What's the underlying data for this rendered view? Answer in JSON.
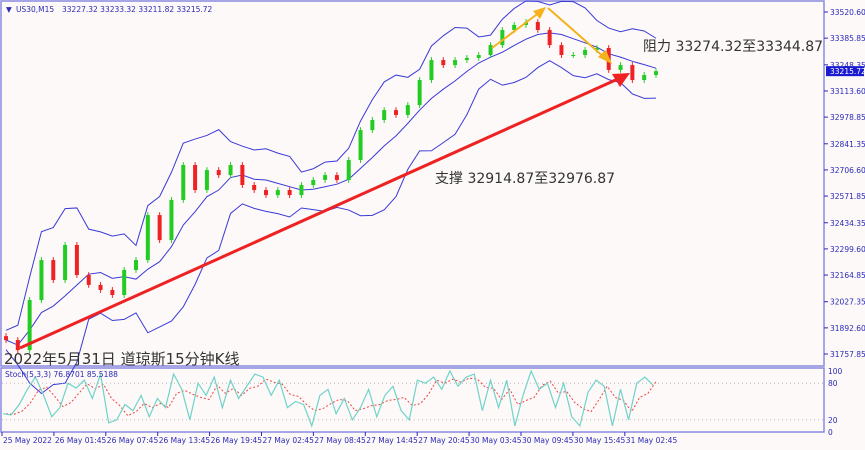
{
  "header": {
    "symbol": "US30,M15",
    "ohlc": "33227.32 33233.32 33211.82 33215.72",
    "menu_icon": "triangle-down-icon"
  },
  "annotations": {
    "resistance": "阻力 33274.32至33344.87",
    "support": "支撑 32914.87至32976.87",
    "caption": "2022年5月31日 道琼斯15分钟K线"
  },
  "colors": {
    "up_candle": "#22cc22",
    "down_candle": "#ee2222",
    "bands": "#3a3ad8",
    "trend_arrow": "#ee2222",
    "wave_lines": "#f5b21c",
    "stoch_main": "#6fd3c9",
    "stoch_signal": "#ee4444",
    "axis": "#2a2ab8",
    "current_price_bg": "#1a1ad0"
  },
  "chart_data": [
    {
      "type": "candlestick",
      "title": "",
      "ylim": [
        31700,
        33580
      ],
      "y_ticks": [
        "33520.60",
        "33385.85",
        "33248.35",
        "33113.60",
        "32978.85",
        "32841.35",
        "32706.60",
        "32571.85",
        "32434.35",
        "32299.60",
        "32164.85",
        "32027.35",
        "31892.60",
        "31757.85"
      ],
      "current_price": "33215.72",
      "x_ticks": [
        "25 May 2022",
        "26 May 01:45",
        "26 May 07:45",
        "26 May 13:45",
        "26 May 19:45",
        "27 May 02:45",
        "27 May 08:45",
        "27 May 14:45",
        "27 May 20:45",
        "30 May 03:45",
        "30 May 09:45",
        "30 May 15:45",
        "31 May 02:45"
      ],
      "closes": [
        31830,
        31778,
        32036,
        32242,
        32139,
        32320,
        32165,
        32114,
        32088,
        32062,
        32191,
        32242,
        32474,
        32345,
        32552,
        32732,
        32603,
        32706,
        32680,
        32732,
        32629,
        32603,
        32577,
        32603,
        32577,
        32629,
        32655,
        32680,
        32655,
        32758,
        32912,
        32964,
        33015,
        32990,
        33041,
        33170,
        33273,
        33247,
        33273,
        33284,
        33299,
        33350,
        33428,
        33454,
        33469,
        33428,
        33350,
        33299,
        33299,
        33325,
        33335,
        33222,
        33247,
        33170,
        33196,
        33215.72
      ],
      "indicator": "Bollinger Bands"
    },
    {
      "type": "line",
      "title": "Stoch(5,3,3) 76.8701 85.5188",
      "ylim": [
        0,
        100
      ],
      "y_ticks": [
        "100",
        "80",
        "20",
        "0"
      ],
      "levels": [
        80,
        20
      ],
      "main": [
        30,
        28,
        45,
        70,
        90,
        60,
        25,
        40,
        80,
        72,
        85,
        55,
        95,
        15,
        20,
        45,
        35,
        60,
        25,
        55,
        40,
        95,
        70,
        20,
        80,
        60,
        90,
        40,
        85,
        55,
        75,
        95,
        90,
        60,
        85,
        40,
        50,
        45,
        10,
        60,
        70,
        30,
        55,
        20,
        40,
        70,
        25,
        60,
        75,
        35,
        20,
        85,
        80,
        90,
        70,
        100,
        75,
        90,
        95,
        35,
        85,
        40,
        85,
        10,
        60,
        100,
        70,
        80,
        40,
        80,
        25,
        10,
        65,
        85,
        75,
        10,
        70,
        20,
        80,
        90,
        77
      ]
    }
  ]
}
